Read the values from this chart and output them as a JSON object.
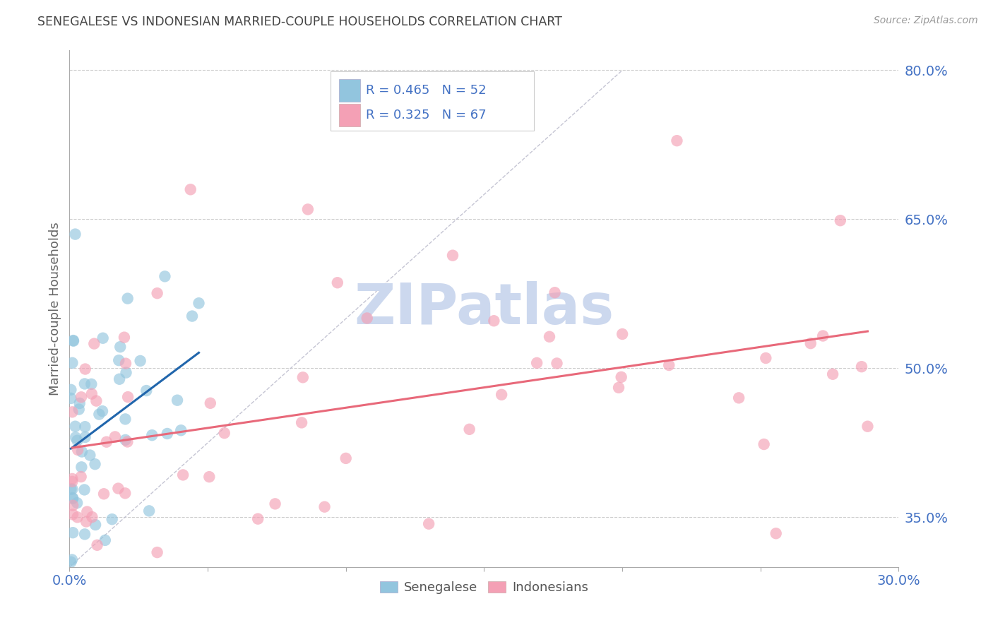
{
  "title": "SENEGALESE VS INDONESIAN MARRIED-COUPLE HOUSEHOLDS CORRELATION CHART",
  "source": "Source: ZipAtlas.com",
  "ylabel": "Married-couple Households",
  "xlim": [
    0.0,
    0.3
  ],
  "ylim": [
    0.3,
    0.82
  ],
  "yticks": [
    0.35,
    0.5,
    0.65,
    0.8
  ],
  "blue_R": 0.465,
  "blue_N": 52,
  "pink_R": 0.325,
  "pink_N": 67,
  "blue_scatter_color": "#92c5de",
  "pink_scatter_color": "#f4a0b5",
  "blue_line_color": "#2166ac",
  "pink_line_color": "#e8697a",
  "ref_line_color": "#bbbbcc",
  "watermark": "ZIPatlas",
  "watermark_color": "#ccd8ee",
  "legend_blue_label": "Senegalese",
  "legend_pink_label": "Indonesians",
  "title_color": "#444444",
  "axis_label_color": "#666666",
  "tick_label_color": "#4472c4",
  "grid_color": "#cccccc",
  "background_color": "#ffffff"
}
